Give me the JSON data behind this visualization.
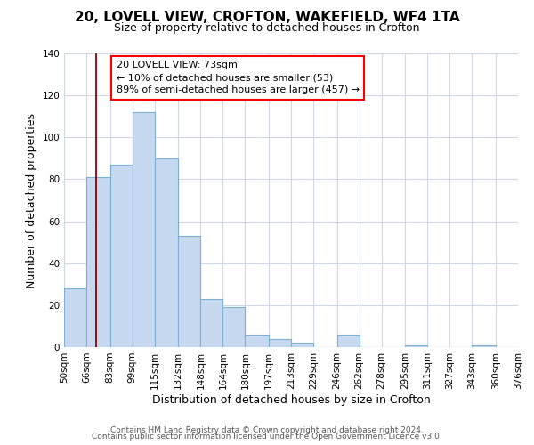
{
  "title1": "20, LOVELL VIEW, CROFTON, WAKEFIELD, WF4 1TA",
  "title2": "Size of property relative to detached houses in Crofton",
  "xlabel": "Distribution of detached houses by size in Crofton",
  "ylabel": "Number of detached properties",
  "bar_edges": [
    50,
    66,
    83,
    99,
    115,
    132,
    148,
    164,
    180,
    197,
    213,
    229,
    246,
    262,
    278,
    295,
    311,
    327,
    343,
    360,
    376
  ],
  "bar_heights": [
    28,
    81,
    87,
    112,
    90,
    53,
    23,
    19,
    6,
    4,
    2,
    0,
    6,
    0,
    0,
    1,
    0,
    0,
    1,
    0
  ],
  "bar_color": "#c6d9f1",
  "bar_edge_color": "#7bafd4",
  "tick_labels": [
    "50sqm",
    "66sqm",
    "83sqm",
    "99sqm",
    "115sqm",
    "132sqm",
    "148sqm",
    "164sqm",
    "180sqm",
    "197sqm",
    "213sqm",
    "229sqm",
    "246sqm",
    "262sqm",
    "278sqm",
    "295sqm",
    "311sqm",
    "327sqm",
    "343sqm",
    "360sqm",
    "376sqm"
  ],
  "ylim": [
    0,
    140
  ],
  "yticks": [
    0,
    20,
    40,
    60,
    80,
    100,
    120,
    140
  ],
  "red_line_x": 73,
  "annotation_line1": "20 LOVELL VIEW: 73sqm",
  "annotation_line2": "← 10% of detached houses are smaller (53)",
  "annotation_line3": "89% of semi-detached houses are larger (457) →",
  "footer1": "Contains HM Land Registry data © Crown copyright and database right 2024.",
  "footer2": "Contains public sector information licensed under the Open Government Licence v3.0.",
  "title1_fontsize": 11,
  "title2_fontsize": 9,
  "ylabel_fontsize": 9,
  "xlabel_fontsize": 9,
  "tick_fontsize": 7.5,
  "footer_fontsize": 6.5
}
